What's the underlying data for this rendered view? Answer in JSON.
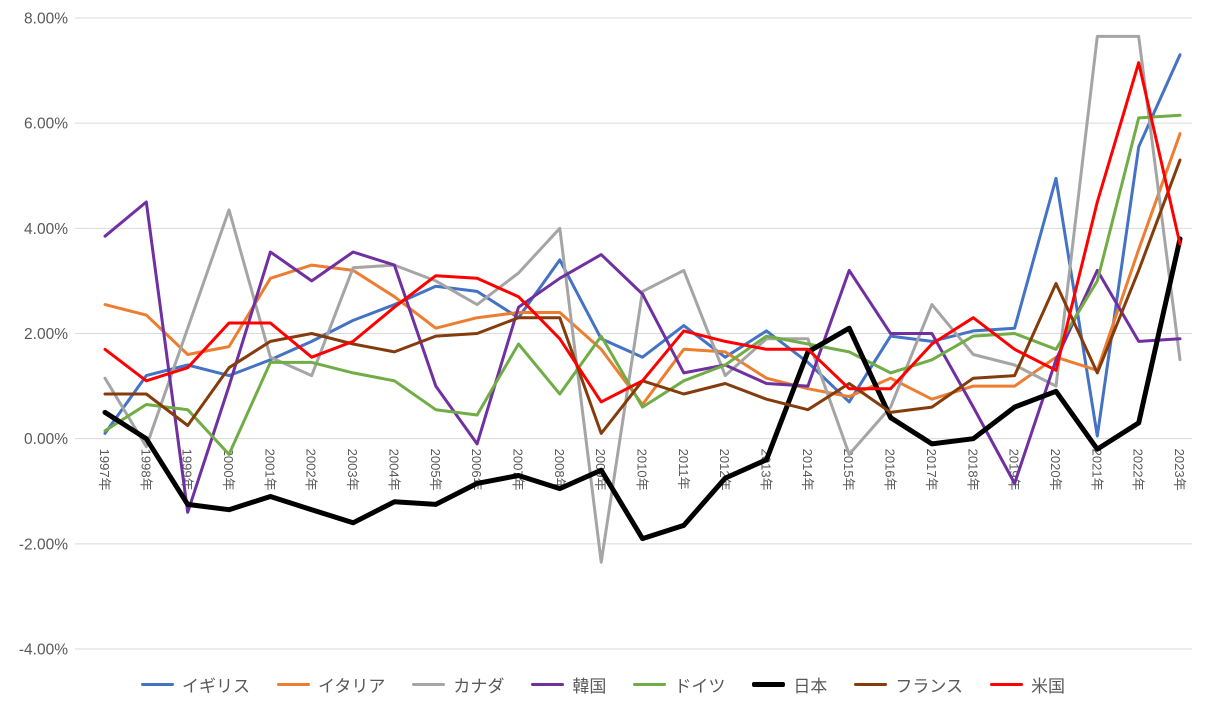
{
  "chart_data": {
    "type": "line",
    "title": "",
    "xlabel": "",
    "ylabel": "",
    "grid": true,
    "legend_position": "bottom",
    "y_axis": {
      "min": -4,
      "max": 8,
      "step": 2,
      "tick_labels": [
        "8.00%",
        "6.00%",
        "4.00%",
        "2.00%",
        "0.00%",
        "-2.00%",
        "-4.00%"
      ],
      "tick_values": [
        8,
        6,
        4,
        2,
        0,
        -2,
        -4
      ]
    },
    "categories": [
      "1997年",
      "1998年",
      "1999年",
      "2000年",
      "2001年",
      "2002年",
      "2003年",
      "2004年",
      "2005年",
      "2006年",
      "2007年",
      "2008年",
      "2009年",
      "2010年",
      "2011年",
      "2012年",
      "2013年",
      "2014年",
      "2015年",
      "2016年",
      "2017年",
      "2018年",
      "2019年",
      "2020年",
      "2021年",
      "2022年",
      "2023年"
    ],
    "series": [
      {
        "name": "イギリス",
        "color": "#4472C4",
        "line_width": 3,
        "values": [
          0.1,
          1.2,
          1.4,
          1.2,
          1.5,
          1.85,
          2.25,
          2.55,
          2.9,
          2.8,
          2.3,
          3.4,
          1.9,
          1.55,
          2.15,
          1.55,
          2.05,
          1.45,
          0.7,
          1.95,
          1.85,
          2.05,
          2.1,
          4.95,
          0.05,
          5.55,
          7.3
        ]
      },
      {
        "name": "イタリア",
        "color": "#ED7D31",
        "line_width": 3,
        "values": [
          2.55,
          2.35,
          1.6,
          1.75,
          3.05,
          3.3,
          3.2,
          2.7,
          2.1,
          2.3,
          2.4,
          2.4,
          1.7,
          0.65,
          1.7,
          1.65,
          1.15,
          0.95,
          0.8,
          1.15,
          0.75,
          1.0,
          1.0,
          1.55,
          1.3,
          3.6,
          5.8
        ]
      },
      {
        "name": "カナダ",
        "color": "#A5A5A5",
        "line_width": 3,
        "values": [
          1.15,
          -0.15,
          2.1,
          4.35,
          1.55,
          1.2,
          3.25,
          3.3,
          3.0,
          2.55,
          3.15,
          4.0,
          -2.35,
          2.8,
          3.2,
          1.2,
          1.9,
          1.9,
          -0.3,
          0.6,
          2.55,
          1.6,
          1.4,
          1.0,
          7.65,
          7.65,
          1.5
        ]
      },
      {
        "name": "韓国",
        "color": "#7030A0",
        "line_width": 3,
        "values": [
          3.85,
          4.5,
          -1.4,
          1.0,
          3.55,
          3.0,
          3.55,
          3.3,
          1.0,
          -0.1,
          2.5,
          3.05,
          3.5,
          2.75,
          1.25,
          1.4,
          1.05,
          1.0,
          3.2,
          2.0,
          2.0,
          0.6,
          -0.85,
          1.5,
          3.2,
          1.85,
          1.9
        ]
      },
      {
        "name": "ドイツ",
        "color": "#70AD47",
        "line_width": 3,
        "values": [
          0.15,
          0.65,
          0.55,
          -0.3,
          1.45,
          1.45,
          1.25,
          1.1,
          0.55,
          0.45,
          1.8,
          0.85,
          1.95,
          0.6,
          1.1,
          1.4,
          1.95,
          1.8,
          1.65,
          1.25,
          1.5,
          1.95,
          2.0,
          1.7,
          3.0,
          6.1,
          6.15
        ]
      },
      {
        "name": "日本",
        "color": "#000000",
        "line_width": 5,
        "values": [
          0.5,
          0.0,
          -1.25,
          -1.35,
          -1.1,
          -1.35,
          -1.6,
          -1.2,
          -1.25,
          -0.85,
          -0.7,
          -0.95,
          -0.6,
          -1.9,
          -1.65,
          -0.75,
          -0.4,
          1.65,
          2.1,
          0.4,
          -0.1,
          0.0,
          0.6,
          0.9,
          -0.2,
          0.3,
          3.8
        ]
      },
      {
        "name": "フランス",
        "color": "#843C0C",
        "line_width": 3,
        "values": [
          0.85,
          0.85,
          0.25,
          1.35,
          1.85,
          2.0,
          1.8,
          1.65,
          1.95,
          2.0,
          2.3,
          2.3,
          0.1,
          1.1,
          0.85,
          1.05,
          0.75,
          0.55,
          1.05,
          0.5,
          0.6,
          1.15,
          1.2,
          2.95,
          1.25,
          3.2,
          5.3
        ]
      },
      {
        "name": "米国",
        "color": "#FF0000",
        "line_width": 3,
        "values": [
          1.7,
          1.1,
          1.35,
          2.2,
          2.2,
          1.55,
          1.85,
          2.5,
          3.1,
          3.05,
          2.7,
          1.9,
          0.7,
          1.1,
          2.05,
          1.85,
          1.7,
          1.7,
          0.95,
          0.95,
          1.8,
          2.3,
          1.7,
          1.3,
          4.5,
          7.15,
          3.7
        ]
      }
    ],
    "style": {
      "gridline_color": "#D9D9D9",
      "axis_text_color": "#595959",
      "background_color": "#FFFFFF"
    }
  }
}
